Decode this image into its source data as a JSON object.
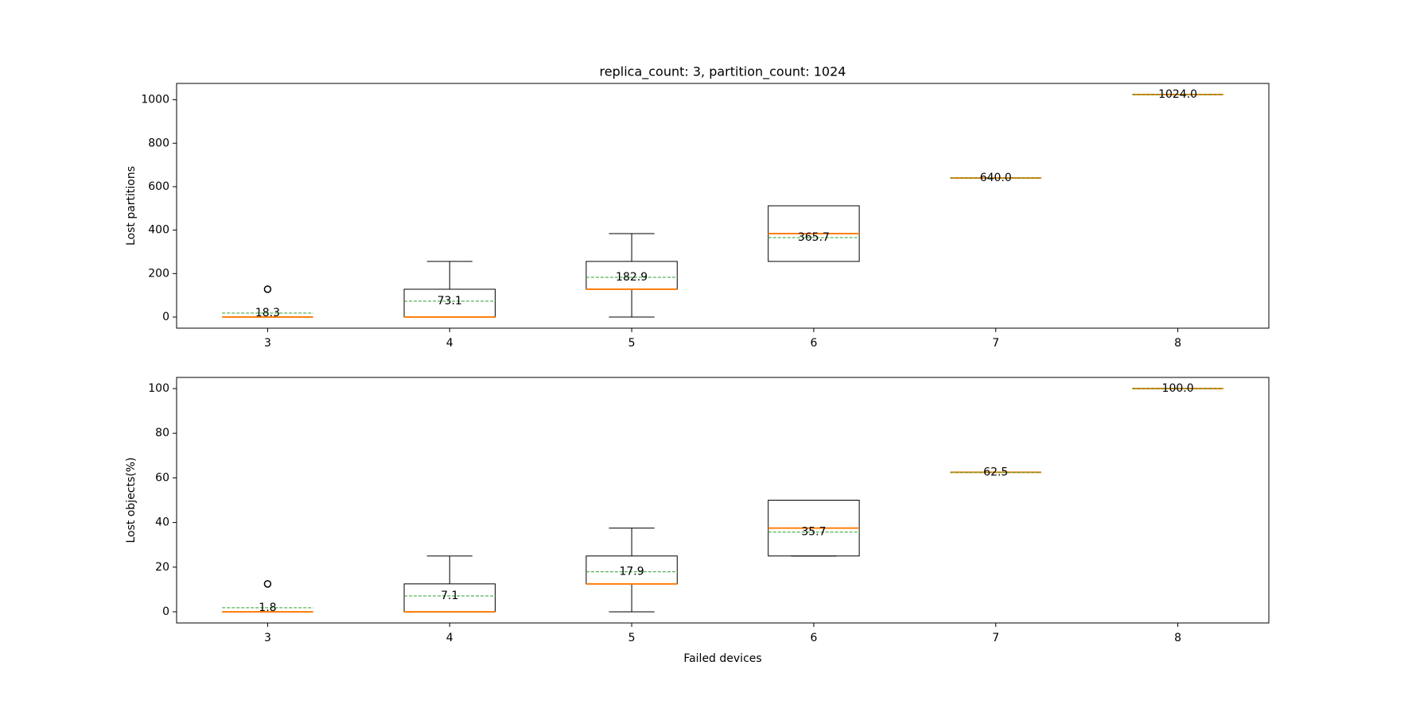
{
  "chart_data": [
    {
      "type": "box",
      "title": "replica_count: 3,  partition_count: 1024",
      "ylabel": "Lost partitions",
      "categories": [
        "3",
        "4",
        "5",
        "6",
        "7",
        "8"
      ],
      "ylim": [
        -51.2,
        1075.2
      ],
      "yticks": [
        0,
        200,
        400,
        600,
        800,
        1000
      ],
      "box_color": "#000000",
      "median_color": "#ff7f0e",
      "mean_color": "#2ca02c",
      "boxes": [
        {
          "whislo": 0,
          "q1": 0,
          "med": 0,
          "q3": 0,
          "whishi": 0,
          "mean": 18.3,
          "mean_label": "18.3",
          "fliers": [
            128
          ]
        },
        {
          "whislo": 0,
          "q1": 0,
          "med": 0,
          "q3": 128,
          "whishi": 256,
          "mean": 73.1,
          "mean_label": "73.1",
          "fliers": []
        },
        {
          "whislo": 0,
          "q1": 128,
          "med": 128,
          "q3": 256,
          "whishi": 384,
          "mean": 182.9,
          "mean_label": "182.9",
          "fliers": []
        },
        {
          "whislo": 256,
          "q1": 256,
          "med": 384,
          "q3": 512,
          "whishi": 512,
          "mean": 365.7,
          "mean_label": "365.7",
          "fliers": []
        },
        {
          "whislo": 640,
          "q1": 640,
          "med": 640,
          "q3": 640,
          "whishi": 640,
          "mean": 640,
          "mean_label": "640.0",
          "fliers": []
        },
        {
          "whislo": 1024,
          "q1": 1024,
          "med": 1024,
          "q3": 1024,
          "whishi": 1024,
          "mean": 1024,
          "mean_label": "1024.0",
          "fliers": []
        }
      ]
    },
    {
      "type": "box",
      "xlabel": "Failed devices",
      "ylabel": "Lost objects(%)",
      "categories": [
        "3",
        "4",
        "5",
        "6",
        "7",
        "8"
      ],
      "ylim": [
        -5,
        105
      ],
      "yticks": [
        0,
        20,
        40,
        60,
        80,
        100
      ],
      "box_color": "#000000",
      "median_color": "#ff7f0e",
      "mean_color": "#2ca02c",
      "boxes": [
        {
          "whislo": 0,
          "q1": 0,
          "med": 0,
          "q3": 0,
          "whishi": 0,
          "mean": 1.8,
          "mean_label": "1.8",
          "fliers": [
            12.5
          ]
        },
        {
          "whislo": 0,
          "q1": 0,
          "med": 0,
          "q3": 12.5,
          "whishi": 25,
          "mean": 7.1,
          "mean_label": "7.1",
          "fliers": []
        },
        {
          "whislo": 0,
          "q1": 12.5,
          "med": 12.5,
          "q3": 25,
          "whishi": 37.5,
          "mean": 17.9,
          "mean_label": "17.9",
          "fliers": []
        },
        {
          "whislo": 25,
          "q1": 25,
          "med": 37.5,
          "q3": 50,
          "whishi": 50,
          "mean": 35.7,
          "mean_label": "35.7",
          "fliers": []
        },
        {
          "whislo": 62.5,
          "q1": 62.5,
          "med": 62.5,
          "q3": 62.5,
          "whishi": 62.5,
          "mean": 62.5,
          "mean_label": "62.5",
          "fliers": []
        },
        {
          "whislo": 100,
          "q1": 100,
          "med": 100,
          "q3": 100,
          "whishi": 100,
          "mean": 100,
          "mean_label": "100.0",
          "fliers": []
        }
      ]
    }
  ]
}
